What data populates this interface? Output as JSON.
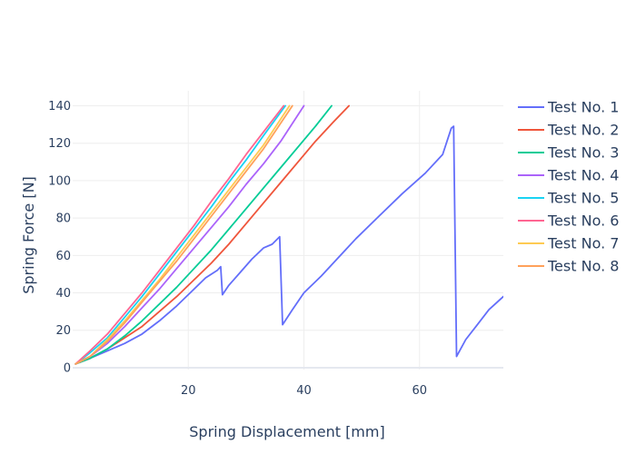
{
  "chart_data": {
    "type": "line",
    "xlabel": "Spring Displacement [mm]",
    "ylabel": "Spring Force [N]",
    "xlim": [
      0,
      74.5
    ],
    "ylim": [
      -1,
      148
    ],
    "x_ticks": [
      20,
      40,
      60
    ],
    "y_ticks": [
      0,
      20,
      40,
      60,
      80,
      100,
      120,
      140
    ],
    "grid": true,
    "legend_position": "right",
    "series": [
      {
        "name": "Test No. 1",
        "color": "#636efa",
        "x": [
          0.5,
          3,
          6,
          9,
          12,
          15,
          18,
          21,
          23,
          25,
          25.6,
          25.9,
          27,
          29,
          31,
          33,
          34.5,
          35.8,
          36.3,
          38,
          40,
          43,
          46,
          49,
          53,
          57,
          61,
          64,
          65.5,
          65.9,
          66.4,
          68,
          70,
          72,
          74.5
        ],
        "y": [
          2,
          5,
          9,
          13,
          18,
          25,
          33,
          42,
          48,
          52,
          54,
          39,
          44,
          51,
          58,
          64,
          66,
          70,
          23,
          31,
          40,
          49,
          59,
          69,
          81,
          93,
          104,
          114,
          128,
          129,
          6,
          15,
          23,
          31,
          38
        ]
      },
      {
        "name": "Test No. 2",
        "color": "#EF553B",
        "x": [
          0.5,
          3,
          6,
          9,
          12,
          15,
          18,
          21,
          24,
          27,
          30,
          33,
          36,
          39,
          42,
          45,
          47.8
        ],
        "y": [
          2,
          5,
          10,
          16,
          22,
          30,
          38,
          47,
          56,
          66,
          77,
          88,
          99,
          110,
          121,
          131,
          140
        ]
      },
      {
        "name": "Test No. 3",
        "color": "#00cc96",
        "x": [
          0.5,
          3,
          6,
          9,
          12,
          15,
          18,
          21,
          24,
          27,
          30,
          33,
          36,
          39,
          42,
          44.8
        ],
        "y": [
          2,
          5,
          10,
          17,
          25,
          34,
          43,
          53,
          63,
          74,
          85,
          96,
          107,
          118,
          129,
          140
        ]
      },
      {
        "name": "Test No. 4",
        "color": "#ab63fa",
        "x": [
          0.5,
          3,
          6,
          9,
          12,
          15,
          18,
          21,
          24,
          27,
          30,
          33,
          36,
          40
        ],
        "y": [
          2,
          6,
          13,
          22,
          32,
          42,
          53,
          64,
          75,
          86,
          98,
          109,
          121,
          140
        ]
      },
      {
        "name": "Test No. 5",
        "color": "#19d3f3",
        "x": [
          0.5,
          3,
          6,
          9,
          12,
          15,
          18,
          21,
          24,
          27,
          30,
          33,
          36.8
        ],
        "y": [
          2,
          8,
          16,
          27,
          38,
          50,
          62,
          74,
          86,
          99,
          111,
          124,
          140
        ]
      },
      {
        "name": "Test No. 6",
        "color": "#FF6692",
        "x": [
          0.5,
          3,
          6,
          9,
          12,
          15,
          18,
          21,
          24,
          27,
          30,
          33,
          36.5
        ],
        "y": [
          2,
          9,
          18,
          29,
          40,
          52,
          64,
          76,
          89,
          101,
          114,
          126,
          140
        ]
      },
      {
        "name": "Test No. 7",
        "color": "#fecb52",
        "x": [
          0.5,
          3,
          6,
          9,
          12,
          15,
          18,
          21,
          24,
          27,
          30,
          33,
          37.5
        ],
        "y": [
          2,
          6,
          15,
          25,
          36,
          47,
          59,
          71,
          83,
          95,
          107,
          119,
          140
        ]
      },
      {
        "name": "Test No. 8",
        "color": "#FFA15A",
        "x": [
          0.5,
          3,
          6,
          9,
          12,
          15,
          18,
          21,
          24,
          27,
          30,
          33,
          38
        ],
        "y": [
          2,
          6,
          14,
          24,
          35,
          46,
          57,
          69,
          81,
          93,
          105,
          117,
          140
        ]
      }
    ]
  }
}
